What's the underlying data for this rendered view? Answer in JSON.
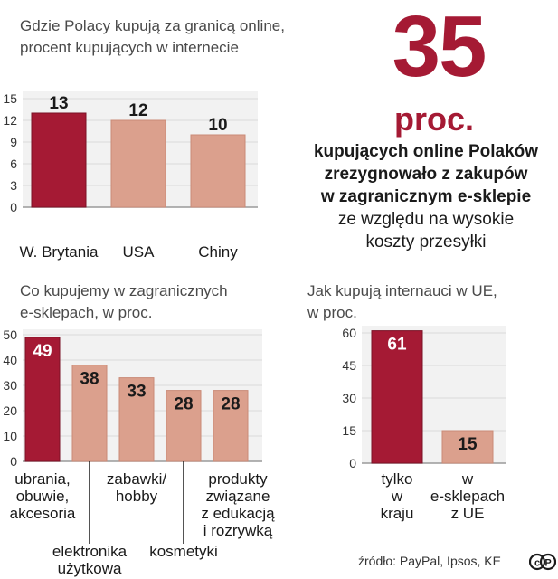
{
  "headline": {
    "number": "35",
    "unit": "proc.",
    "bold_text": "kupujących online Polaków\nzrezygnowało z zakupów\nw zagranicznym e-sklepie",
    "normal_text": "ze względu na wysokie\nkoszty przesyłki"
  },
  "source": "źródło: PayPal, Ipsos, KE",
  "colors": {
    "highlight_bar": "#a51a34",
    "regular_bar": "#dba08d",
    "plot_background": "#f2f2f2",
    "grid": "#d9d9d9"
  },
  "logo": "cc-cp-logo",
  "chart_data": [
    {
      "type": "bar",
      "title": "Gdzie Polacy kupują za granicą online,\nprocent kupujących w internecie",
      "categories": [
        "W. Brytania",
        "USA",
        "Chiny"
      ],
      "values": [
        13,
        12,
        10
      ],
      "value_labels": [
        "13",
        "12",
        "10"
      ],
      "highlight": [
        0
      ],
      "ylim": [
        0,
        15
      ],
      "yticks": [
        0,
        3,
        6,
        9,
        12,
        15
      ],
      "grid": true
    },
    {
      "type": "bar",
      "title": "Co kupujemy w zagranicznych\ne-sklepach, w proc.",
      "categories": [
        "ubrania,\nobuwie,\nakcesoria",
        "elektronika\nużytkowa",
        "zabawki/\nhobby",
        "kosmetyki",
        "produkty\nzwiązane\nz edukacją\ni rozrywką"
      ],
      "values": [
        49,
        38,
        33,
        28,
        28
      ],
      "value_labels": [
        "49",
        "38",
        "33",
        "28",
        "28"
      ],
      "highlight": [
        0
      ],
      "ylim": [
        0,
        50
      ],
      "yticks": [
        0,
        10,
        20,
        30,
        40,
        50
      ],
      "grid": true
    },
    {
      "type": "bar",
      "title": "Jak kupują internauci w UE,\nw proc.",
      "categories": [
        "tylko\nw\nkraju",
        "w\ne-sklepach\nz UE"
      ],
      "values": [
        61,
        15
      ],
      "value_labels": [
        "61",
        "15"
      ],
      "highlight": [
        0
      ],
      "ylim": [
        0,
        60
      ],
      "yticks": [
        0,
        15,
        30,
        45,
        60
      ],
      "grid": true
    }
  ]
}
